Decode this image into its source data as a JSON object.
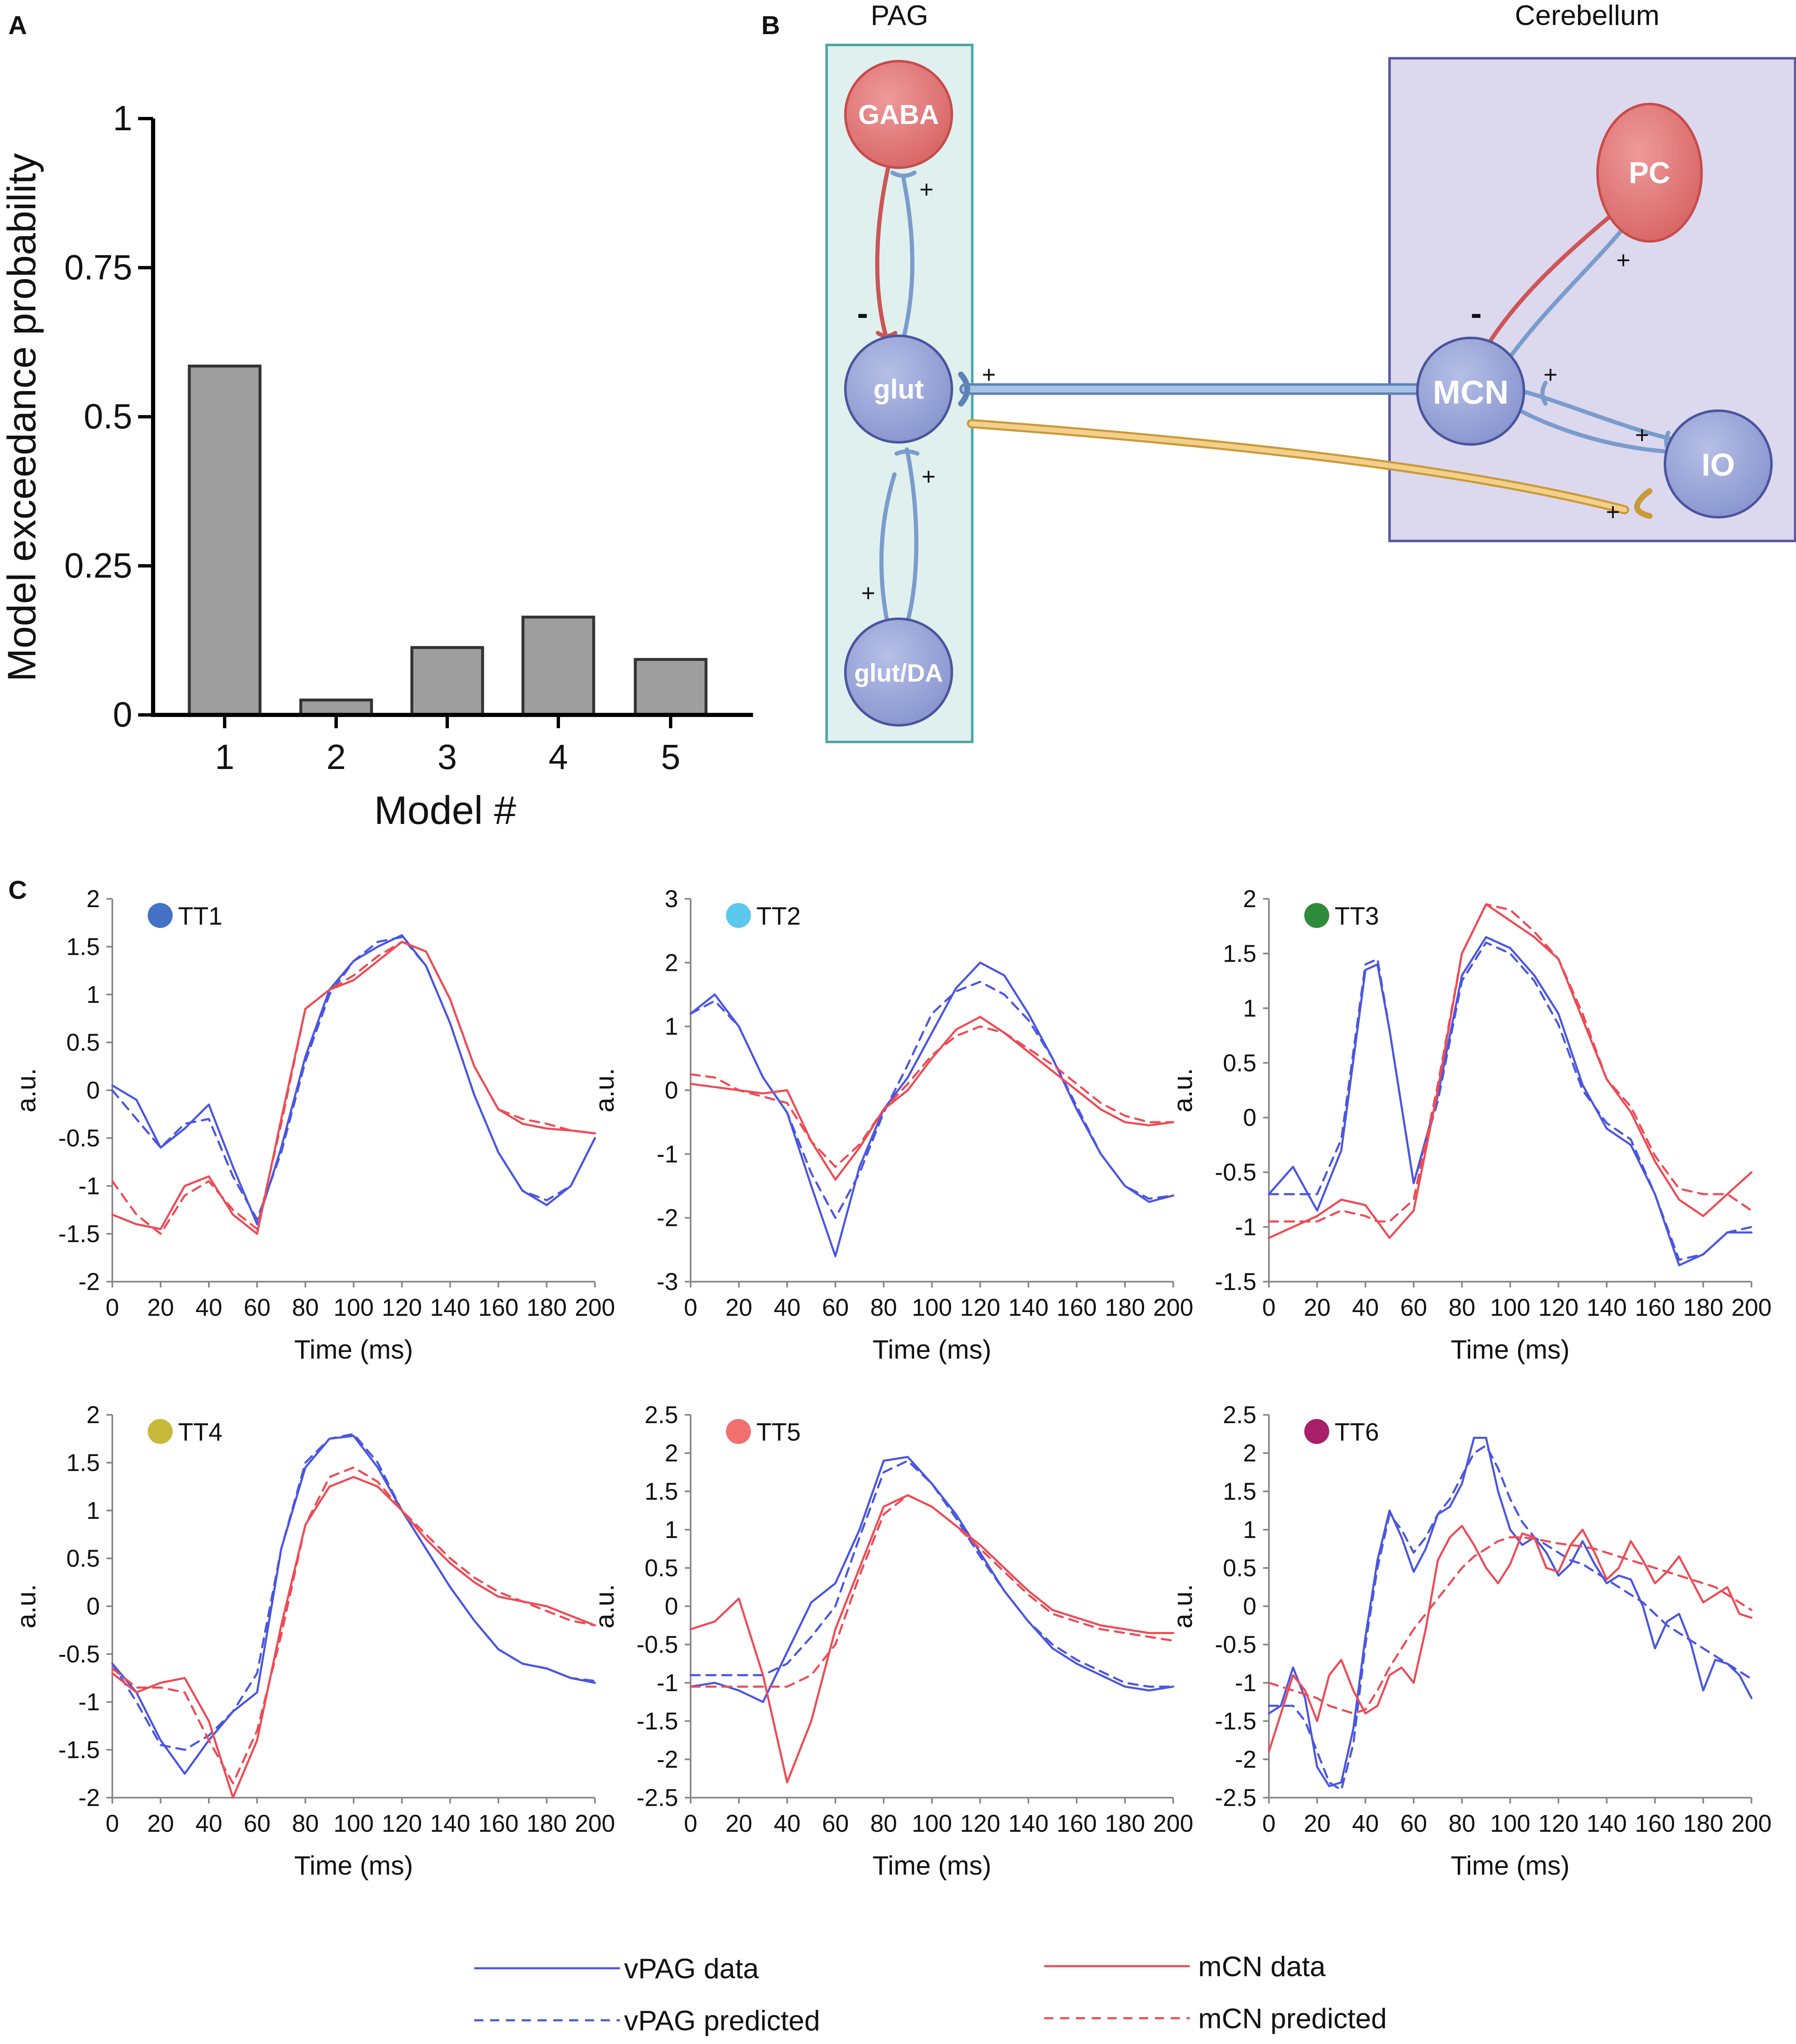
{
  "panel_labels": {
    "a": "A",
    "b": "B",
    "c": "C"
  },
  "colors": {
    "bar_fill": "#9e9e9e",
    "bar_stroke": "#333333",
    "vpag": "#4a56e0",
    "mcn": "#ee4b55",
    "pag_box_fill": "#dff0ee",
    "pag_box_stroke": "#4ea6a6",
    "cb_box_fill": "#dcd8ee",
    "cb_box_stroke": "#5a57a8",
    "gaba_fill": "#e07777",
    "glut_fill": "#9aa6d8",
    "excit": "#7a9ccc",
    "inhib": "#cc5555",
    "proj": "#e6b45a"
  },
  "chart_data": [
    {
      "type": "bar",
      "title": "",
      "categories": [
        "1",
        "2",
        "3",
        "4",
        "5"
      ],
      "values": [
        0.585,
        0.025,
        0.113,
        0.164,
        0.093
      ],
      "xlabel": "Model #",
      "ylabel": "Model exceedance probability",
      "ylim": [
        0,
        1
      ],
      "yticks": [
        0,
        0.25,
        0.5,
        0.75,
        1
      ],
      "ytick_labels": [
        "0",
        "0.25",
        "0.5",
        "0.75",
        "1"
      ]
    },
    {
      "type": "line",
      "title": "TT1",
      "dot_color": "#4472c4",
      "xlabel": "Time (ms)",
      "ylabel": "a.u.",
      "xlim": [
        0,
        200
      ],
      "ylim": [
        -2,
        2
      ],
      "xticks": [
        "0",
        "20",
        "40",
        "60",
        "80",
        "100",
        "120",
        "140",
        "160",
        "180",
        "200"
      ],
      "yticks": [
        "-2",
        "-1.5",
        "-1",
        "-0.5",
        "0",
        "0.5",
        "1",
        "1.5",
        "2"
      ],
      "x": [
        0,
        10,
        20,
        30,
        40,
        50,
        60,
        70,
        80,
        90,
        100,
        110,
        120,
        130,
        140,
        150,
        160,
        170,
        180,
        190,
        200
      ],
      "series": [
        {
          "name": "vPAG data",
          "values": [
            0.05,
            -0.1,
            -0.6,
            -0.4,
            -0.15,
            -0.8,
            -1.4,
            -0.6,
            0.35,
            1.05,
            1.35,
            1.5,
            1.62,
            1.3,
            0.7,
            -0.05,
            -0.65,
            -1.05,
            -1.2,
            -1.0,
            -0.5
          ]
        },
        {
          "name": "vPAG predicted",
          "values": [
            0.0,
            -0.3,
            -0.6,
            -0.35,
            -0.3,
            -0.9,
            -1.35,
            -0.65,
            0.3,
            1.0,
            1.35,
            1.55,
            1.6,
            1.3,
            0.7,
            -0.05,
            -0.65,
            -1.05,
            -1.15,
            -1.0,
            -0.5
          ]
        },
        {
          "name": "mCN data",
          "values": [
            -1.3,
            -1.4,
            -1.45,
            -1.0,
            -0.9,
            -1.3,
            -1.5,
            -0.3,
            0.85,
            1.05,
            1.15,
            1.35,
            1.55,
            1.45,
            0.95,
            0.25,
            -0.2,
            -0.35,
            -0.4,
            -0.42,
            -0.45
          ]
        },
        {
          "name": "mCN predicted",
          "values": [
            -0.95,
            -1.3,
            -1.5,
            -1.1,
            -0.95,
            -1.25,
            -1.45,
            -0.35,
            0.85,
            1.05,
            1.2,
            1.4,
            1.55,
            1.45,
            0.95,
            0.25,
            -0.2,
            -0.3,
            -0.35,
            -0.42,
            -0.45
          ]
        }
      ]
    },
    {
      "type": "line",
      "title": "TT2",
      "dot_color": "#5bc8ec",
      "xlabel": "Time (ms)",
      "ylabel": "a.u.",
      "xlim": [
        0,
        200
      ],
      "ylim": [
        -3,
        3
      ],
      "xticks": [
        "0",
        "20",
        "40",
        "60",
        "80",
        "100",
        "120",
        "140",
        "160",
        "180",
        "200"
      ],
      "yticks": [
        "-3",
        "-2",
        "-1",
        "0",
        "1",
        "2",
        "3"
      ],
      "x": [
        0,
        10,
        20,
        30,
        40,
        50,
        60,
        70,
        80,
        90,
        100,
        110,
        120,
        130,
        140,
        150,
        160,
        170,
        180,
        190,
        200
      ],
      "series": [
        {
          "name": "vPAG data",
          "values": [
            1.2,
            1.5,
            1.0,
            0.2,
            -0.35,
            -1.5,
            -2.6,
            -1.2,
            -0.3,
            0.2,
            0.9,
            1.6,
            2.0,
            1.8,
            1.2,
            0.5,
            -0.3,
            -1.0,
            -1.5,
            -1.75,
            -1.65
          ]
        },
        {
          "name": "vPAG predicted",
          "values": [
            1.2,
            1.4,
            1.0,
            0.2,
            -0.35,
            -1.3,
            -2.0,
            -1.3,
            -0.35,
            0.4,
            1.2,
            1.55,
            1.7,
            1.5,
            1.1,
            0.5,
            -0.25,
            -1.0,
            -1.5,
            -1.7,
            -1.65
          ]
        },
        {
          "name": "mCN data",
          "values": [
            0.1,
            0.05,
            0.0,
            -0.05,
            0.0,
            -0.8,
            -1.4,
            -0.9,
            -0.3,
            0.0,
            0.5,
            0.95,
            1.15,
            0.9,
            0.6,
            0.3,
            0.0,
            -0.3,
            -0.5,
            -0.55,
            -0.5
          ]
        },
        {
          "name": "mCN predicted",
          "values": [
            0.25,
            0.2,
            0.0,
            -0.1,
            -0.2,
            -0.8,
            -1.2,
            -0.85,
            -0.3,
            0.1,
            0.55,
            0.85,
            1.0,
            0.9,
            0.65,
            0.4,
            0.1,
            -0.2,
            -0.4,
            -0.5,
            -0.5
          ]
        }
      ]
    },
    {
      "type": "line",
      "title": "TT3",
      "dot_color": "#2e8b3a",
      "xlabel": "Time (ms)",
      "ylabel": "a.u.",
      "xlim": [
        0,
        200
      ],
      "ylim": [
        -1.5,
        2
      ],
      "xticks": [
        "0",
        "20",
        "40",
        "60",
        "80",
        "100",
        "120",
        "140",
        "160",
        "180",
        "200"
      ],
      "yticks": [
        "-1.5",
        "-1",
        "-0.5",
        "0",
        "0.5",
        "1",
        "1.5",
        "2"
      ],
      "x": [
        0,
        10,
        20,
        30,
        40,
        45,
        50,
        60,
        70,
        80,
        90,
        100,
        110,
        120,
        130,
        140,
        150,
        160,
        170,
        180,
        190,
        200
      ],
      "series": [
        {
          "name": "vPAG data",
          "values": [
            -0.7,
            -0.45,
            -0.85,
            -0.3,
            1.35,
            1.4,
            0.8,
            -0.6,
            0.2,
            1.3,
            1.65,
            1.55,
            1.3,
            0.95,
            0.3,
            -0.1,
            -0.25,
            -0.7,
            -1.35,
            -1.25,
            -1.05,
            -1.05
          ]
        },
        {
          "name": "vPAG predicted",
          "values": [
            -0.7,
            -0.7,
            -0.7,
            -0.2,
            1.4,
            1.45,
            0.8,
            -0.6,
            0.15,
            1.25,
            1.6,
            1.5,
            1.25,
            0.85,
            0.25,
            -0.05,
            -0.2,
            -0.7,
            -1.3,
            -1.25,
            -1.05,
            -1.0
          ]
        },
        {
          "name": "mCN data",
          "values": [
            -1.1,
            -1.0,
            -0.9,
            -0.75,
            -0.8,
            -0.95,
            -1.1,
            -0.85,
            0.25,
            1.5,
            1.95,
            1.8,
            1.65,
            1.45,
            0.9,
            0.35,
            0.05,
            -0.4,
            -0.75,
            -0.9,
            -0.7,
            -0.5
          ]
        },
        {
          "name": "mCN predicted",
          "values": [
            -0.95,
            -0.95,
            -0.95,
            -0.85,
            -0.9,
            -0.95,
            -0.95,
            -0.75,
            0.3,
            1.5,
            1.95,
            1.9,
            1.7,
            1.45,
            0.95,
            0.35,
            0.1,
            -0.35,
            -0.65,
            -0.7,
            -0.7,
            -0.85
          ]
        }
      ]
    },
    {
      "type": "line",
      "title": "TT4",
      "dot_color": "#c9b93a",
      "xlabel": "Time (ms)",
      "ylabel": "a.u.",
      "xlim": [
        0,
        200
      ],
      "ylim": [
        -2,
        2
      ],
      "xticks": [
        "0",
        "20",
        "40",
        "60",
        "80",
        "100",
        "120",
        "140",
        "160",
        "180",
        "200"
      ],
      "yticks": [
        "-2",
        "-1.5",
        "-1",
        "-0.5",
        "0",
        "0.5",
        "1",
        "1.5",
        "2"
      ],
      "x": [
        0,
        10,
        20,
        30,
        40,
        50,
        60,
        70,
        80,
        90,
        100,
        110,
        120,
        130,
        140,
        150,
        160,
        170,
        180,
        190,
        200
      ],
      "series": [
        {
          "name": "vPAG data",
          "values": [
            -0.6,
            -0.9,
            -1.4,
            -1.75,
            -1.4,
            -1.1,
            -0.9,
            0.6,
            1.45,
            1.75,
            1.78,
            1.45,
            1.0,
            0.6,
            0.2,
            -0.15,
            -0.45,
            -0.6,
            -0.65,
            -0.75,
            -0.8
          ]
        },
        {
          "name": "vPAG predicted",
          "values": [
            -0.6,
            -1.0,
            -1.45,
            -1.5,
            -1.35,
            -1.1,
            -0.7,
            0.6,
            1.5,
            1.75,
            1.8,
            1.5,
            1.0,
            0.6,
            0.2,
            -0.15,
            -0.45,
            -0.6,
            -0.65,
            -0.75,
            -0.78
          ]
        },
        {
          "name": "mCN data",
          "values": [
            -0.7,
            -0.9,
            -0.8,
            -0.75,
            -1.2,
            -2.0,
            -1.4,
            -0.2,
            0.85,
            1.25,
            1.35,
            1.25,
            1.0,
            0.7,
            0.45,
            0.25,
            0.1,
            0.05,
            0.0,
            -0.1,
            -0.2
          ]
        },
        {
          "name": "mCN predicted",
          "values": [
            -0.65,
            -0.85,
            -0.85,
            -0.9,
            -1.4,
            -1.85,
            -1.3,
            -0.3,
            0.85,
            1.35,
            1.45,
            1.3,
            1.0,
            0.75,
            0.5,
            0.3,
            0.15,
            0.05,
            -0.05,
            -0.15,
            -0.2
          ]
        }
      ]
    },
    {
      "type": "line",
      "title": "TT5",
      "dot_color": "#f07070",
      "xlabel": "Time (ms)",
      "ylabel": "a.u.",
      "xlim": [
        0,
        200
      ],
      "ylim": [
        -2.5,
        2.5
      ],
      "xticks": [
        "0",
        "20",
        "40",
        "60",
        "80",
        "100",
        "120",
        "140",
        "160",
        "180",
        "200"
      ],
      "yticks": [
        "-2.5",
        "-2",
        "-1.5",
        "-1",
        "-0.5",
        "0",
        "0.5",
        "1",
        "1.5",
        "2",
        "2.5"
      ],
      "x": [
        0,
        10,
        20,
        30,
        40,
        50,
        60,
        70,
        80,
        90,
        100,
        110,
        120,
        130,
        140,
        150,
        160,
        170,
        180,
        190,
        200
      ],
      "series": [
        {
          "name": "vPAG data",
          "values": [
            -1.05,
            -1.0,
            -1.1,
            -1.25,
            -0.6,
            0.05,
            0.3,
            1.0,
            1.9,
            1.95,
            1.6,
            1.2,
            0.7,
            0.2,
            -0.2,
            -0.55,
            -0.75,
            -0.9,
            -1.05,
            -1.1,
            -1.05
          ]
        },
        {
          "name": "vPAG predicted",
          "values": [
            -0.9,
            -0.9,
            -0.9,
            -0.9,
            -0.75,
            -0.4,
            0.0,
            0.9,
            1.75,
            1.9,
            1.6,
            1.15,
            0.65,
            0.2,
            -0.2,
            -0.5,
            -0.7,
            -0.85,
            -1.0,
            -1.05,
            -1.05
          ]
        },
        {
          "name": "mCN data",
          "values": [
            -0.3,
            -0.2,
            0.1,
            -0.9,
            -2.3,
            -1.5,
            -0.3,
            0.5,
            1.3,
            1.45,
            1.3,
            1.05,
            0.8,
            0.5,
            0.2,
            -0.05,
            -0.15,
            -0.25,
            -0.3,
            -0.35,
            -0.35
          ]
        },
        {
          "name": "mCN predicted",
          "values": [
            -1.05,
            -1.05,
            -1.05,
            -1.05,
            -1.05,
            -0.9,
            -0.5,
            0.4,
            1.2,
            1.45,
            1.3,
            1.05,
            0.75,
            0.45,
            0.15,
            -0.1,
            -0.2,
            -0.3,
            -0.35,
            -0.4,
            -0.45
          ]
        }
      ]
    },
    {
      "type": "line",
      "title": "TT6",
      "dot_color": "#a8206a",
      "xlabel": "Time (ms)",
      "ylabel": "a.u.",
      "xlim": [
        0,
        200
      ],
      "ylim": [
        -2.5,
        2.5
      ],
      "xticks": [
        "0",
        "20",
        "40",
        "60",
        "80",
        "100",
        "120",
        "140",
        "160",
        "180",
        "200"
      ],
      "yticks": [
        "-2.5",
        "-2",
        "-1.5",
        "-1",
        "-0.5",
        "0",
        "0.5",
        "1",
        "1.5",
        "2",
        "2.5"
      ],
      "x": [
        0,
        5,
        10,
        15,
        20,
        25,
        30,
        35,
        40,
        45,
        50,
        55,
        60,
        65,
        70,
        75,
        80,
        85,
        90,
        95,
        100,
        105,
        110,
        115,
        120,
        125,
        130,
        135,
        140,
        145,
        150,
        155,
        160,
        165,
        170,
        175,
        180,
        185,
        190,
        195,
        200
      ],
      "series": [
        {
          "name": "vPAG data",
          "values": [
            -1.4,
            -1.3,
            -0.8,
            -1.2,
            -2.1,
            -2.35,
            -2.3,
            -1.6,
            -0.4,
            0.6,
            1.25,
            0.9,
            0.45,
            0.75,
            1.2,
            1.3,
            1.6,
            2.2,
            2.2,
            1.5,
            1.0,
            0.8,
            0.9,
            0.7,
            0.4,
            0.55,
            0.85,
            0.55,
            0.3,
            0.4,
            0.35,
            0.0,
            -0.55,
            -0.2,
            -0.1,
            -0.5,
            -1.1,
            -0.7,
            -0.75,
            -0.9,
            -1.2
          ]
        },
        {
          "name": "vPAG predicted",
          "values": [
            -1.3,
            -1.3,
            -1.3,
            -1.5,
            -1.9,
            -2.3,
            -2.4,
            -1.8,
            -0.5,
            0.5,
            1.2,
            1.0,
            0.7,
            0.9,
            1.2,
            1.4,
            1.7,
            2.0,
            2.1,
            1.8,
            1.4,
            1.1,
            0.9,
            0.8,
            0.7,
            0.6,
            0.55,
            0.45,
            0.35,
            0.25,
            0.15,
            0.05,
            -0.1,
            -0.25,
            -0.35,
            -0.45,
            -0.55,
            -0.65,
            -0.75,
            -0.85,
            -0.95
          ]
        },
        {
          "name": "mCN data",
          "values": [
            -1.9,
            -1.4,
            -0.9,
            -1.1,
            -1.5,
            -0.9,
            -0.7,
            -1.1,
            -1.4,
            -1.3,
            -0.9,
            -0.8,
            -1.0,
            -0.3,
            0.6,
            0.9,
            1.05,
            0.8,
            0.5,
            0.3,
            0.55,
            0.95,
            0.9,
            0.5,
            0.45,
            0.8,
            1.0,
            0.7,
            0.35,
            0.5,
            0.85,
            0.6,
            0.3,
            0.45,
            0.65,
            0.35,
            0.05,
            0.15,
            0.25,
            -0.1,
            -0.15
          ]
        },
        {
          "name": "mCN predicted",
          "values": [
            -1.0,
            -1.05,
            -1.1,
            -1.15,
            -1.2,
            -1.3,
            -1.35,
            -1.4,
            -1.35,
            -1.1,
            -0.8,
            -0.55,
            -0.3,
            -0.1,
            0.1,
            0.3,
            0.5,
            0.65,
            0.75,
            0.85,
            0.9,
            0.9,
            0.88,
            0.85,
            0.82,
            0.8,
            0.78,
            0.75,
            0.7,
            0.65,
            0.6,
            0.55,
            0.5,
            0.45,
            0.4,
            0.35,
            0.3,
            0.25,
            0.15,
            0.05,
            -0.05
          ]
        }
      ]
    }
  ],
  "diagram": {
    "pag_label": "PAG",
    "cerebellum_label": "Cerebellum",
    "neurons": {
      "gaba": "GABA",
      "glut": "glut",
      "glut_da": "glut/DA",
      "pc": "PC",
      "mcn": "MCN",
      "io": "IO"
    },
    "plus": "+",
    "minus": "-"
  },
  "legend": [
    {
      "name": "vPAG data",
      "style": "solid",
      "color": "#4a56e0"
    },
    {
      "name": "vPAG predicted",
      "style": "dashed",
      "color": "#4a56e0"
    },
    {
      "name": "mCN data",
      "style": "solid",
      "color": "#ee4b55"
    },
    {
      "name": "mCN predicted",
      "style": "dashed",
      "color": "#ee4b55"
    }
  ]
}
